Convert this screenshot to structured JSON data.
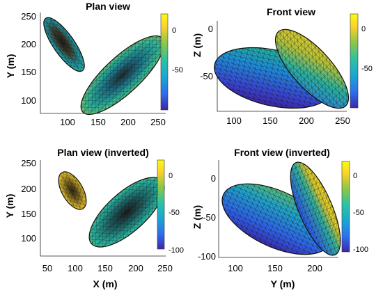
{
  "panels": [
    {
      "title": "Plan view",
      "x_label": "",
      "y_label": "Y (m)",
      "x_ticks": [
        "100",
        "150",
        "200",
        "250"
      ],
      "y_ticks": [
        "250",
        "200",
        "150",
        "100"
      ],
      "colorbar_ticks": [
        "0",
        "-50"
      ]
    },
    {
      "title": "Front view",
      "x_label": "",
      "y_label": "Z (m)",
      "x_ticks": [
        "100",
        "150",
        "200",
        "250"
      ],
      "y_ticks": [
        "0",
        "-50"
      ],
      "colorbar_ticks": [
        "0",
        "-50"
      ]
    },
    {
      "title": "Plan view (inverted)",
      "x_label": "X (m)",
      "y_label": "Y (m)",
      "x_ticks": [
        "50",
        "100",
        "150",
        "200",
        "250"
      ],
      "y_ticks": [
        "250",
        "200",
        "150",
        "100"
      ],
      "colorbar_ticks": [
        "0",
        "-50",
        "-100"
      ]
    },
    {
      "title": "Front view (inverted)",
      "x_label": "Y (m)",
      "y_label": "Z (m)",
      "x_ticks": [
        "100",
        "150",
        "200"
      ],
      "y_ticks": [
        "0",
        "-50",
        "-100"
      ],
      "colorbar_ticks": [
        "0",
        "-50",
        "-100"
      ]
    }
  ],
  "colormap": [
    "#3e26a8",
    "#2c6ff0",
    "#1aa8cf",
    "#2cc2a3",
    "#8fc744",
    "#f9d12a",
    "#f9fb15"
  ]
}
